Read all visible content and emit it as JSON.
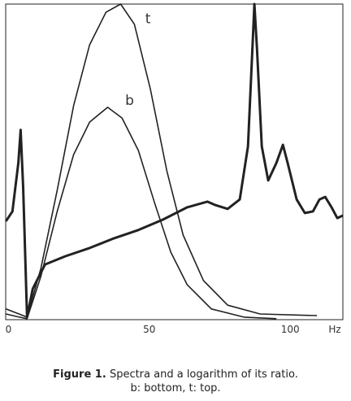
{
  "chart_data": {
    "type": "line",
    "caption": {
      "label": "Figure 1.",
      "text": "Spectra and a logarithm of its ratio.",
      "note": "b: bottom, t: top."
    },
    "xlabel": "Hz",
    "xlim": [
      -1,
      118.7
    ],
    "xticks": [
      0,
      50,
      100
    ],
    "ylim": [
      0,
      100
    ],
    "series": [
      {
        "name": "t",
        "color": "#222222",
        "line_width": 1.6,
        "x": [
          -0.9,
          2.9,
          6.6,
          11.5,
          17.3,
          23.1,
          28.8,
          34.6,
          39.8,
          44.7,
          50.4,
          56.2,
          62.0,
          69.2,
          77.8,
          89.3,
          109.5
        ],
        "values": [
          3.4,
          2.1,
          0.8,
          16.2,
          41.0,
          67.8,
          87.1,
          97.4,
          100,
          93.6,
          72.9,
          47.2,
          26.8,
          12.4,
          4.6,
          1.8,
          1.3
        ]
      },
      {
        "name": "b",
        "color": "#222222",
        "line_width": 1.6,
        "x": [
          -0.9,
          2.9,
          6.6,
          11.5,
          17.3,
          23.1,
          28.8,
          35.2,
          40.3,
          46.1,
          51.9,
          57.6,
          63.4,
          72.0,
          83.6,
          95.1
        ],
        "values": [
          1.8,
          1.0,
          0.3,
          13.7,
          34.3,
          52.3,
          62.6,
          67.3,
          63.9,
          53.6,
          36.9,
          21.4,
          11.1,
          3.4,
          0.8,
          0.3
        ]
      },
      {
        "color": "#222222",
        "line_width": 3,
        "x": [
          -0.9,
          1.4,
          3.5,
          4.3,
          5.2,
          6.6,
          8.6,
          13.0,
          20.2,
          28.8,
          37.5,
          46.1,
          54.8,
          63.4,
          70.6,
          73.5,
          77.8,
          82.1,
          85.0,
          86.7,
          87.3,
          88.2,
          89.9,
          92.2,
          95.1,
          97.4,
          99.1,
          102.3,
          105.2,
          108.1,
          110.4,
          112.4,
          114.7,
          116.7,
          118.7
        ],
        "values": [
          31.2,
          34.3,
          49.7,
          60.1,
          42.0,
          0.8,
          9.8,
          17.5,
          20.1,
          22.7,
          25.8,
          28.4,
          31.7,
          35.6,
          37.4,
          36.3,
          35.1,
          38.1,
          54.9,
          88.4,
          100,
          85.8,
          54.9,
          44.1,
          49.7,
          55.4,
          49.7,
          38.1,
          33.8,
          34.3,
          38.1,
          38.9,
          35.6,
          32.2,
          33.0
        ]
      }
    ],
    "annotations": [
      {
        "text": "t",
        "series": 0,
        "x": 49.5,
        "y": 94
      },
      {
        "text": "b",
        "series": 1,
        "x": 43,
        "y": 68
      }
    ]
  }
}
